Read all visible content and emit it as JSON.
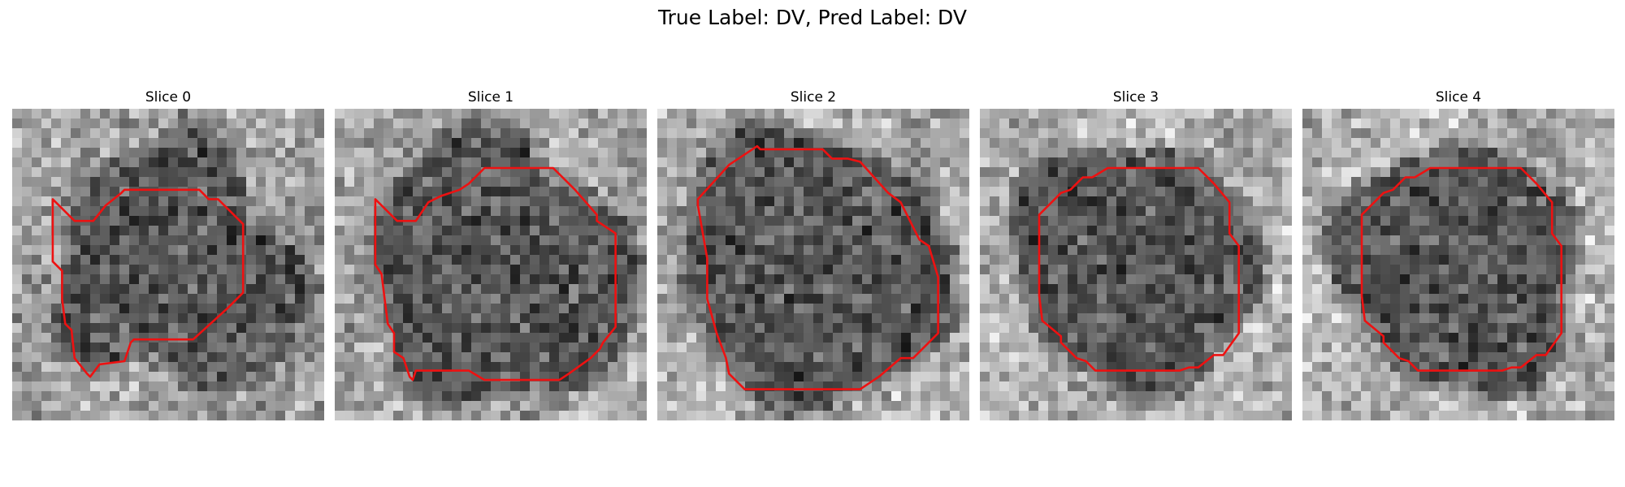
{
  "figure": {
    "title": "True Label: DV, Pred Label: DV"
  },
  "panels": [
    {
      "label": "Slice 0",
      "region": {
        "center": [
          0.53,
          0.51
        ],
        "radius": 0.36,
        "wobble": [
          0.05,
          0.04,
          0.03
        ]
      },
      "background_brightness": 0.62,
      "contour": [
        [
          0.13,
          0.29
        ],
        [
          0.2,
          0.36
        ],
        [
          0.26,
          0.36
        ],
        [
          0.3,
          0.31
        ],
        [
          0.35,
          0.27
        ],
        [
          0.36,
          0.26
        ],
        [
          0.6,
          0.26
        ],
        [
          0.63,
          0.29
        ],
        [
          0.66,
          0.29
        ],
        [
          0.7,
          0.33
        ],
        [
          0.74,
          0.37
        ],
        [
          0.74,
          0.59
        ],
        [
          0.69,
          0.64
        ],
        [
          0.58,
          0.74
        ],
        [
          0.39,
          0.74
        ],
        [
          0.38,
          0.75
        ],
        [
          0.36,
          0.81
        ],
        [
          0.28,
          0.82
        ],
        [
          0.25,
          0.86
        ],
        [
          0.24,
          0.85
        ],
        [
          0.2,
          0.8
        ],
        [
          0.19,
          0.71
        ],
        [
          0.17,
          0.69
        ],
        [
          0.16,
          0.61
        ],
        [
          0.16,
          0.52
        ],
        [
          0.13,
          0.49
        ],
        [
          0.13,
          0.31
        ]
      ]
    },
    {
      "label": "Slice 1",
      "region": {
        "center": [
          0.53,
          0.52
        ],
        "radius": 0.4,
        "wobble": [
          0.04,
          0.03,
          0.02
        ]
      },
      "background_brightness": 0.64,
      "contour": [
        [
          0.13,
          0.29
        ],
        [
          0.2,
          0.36
        ],
        [
          0.26,
          0.36
        ],
        [
          0.3,
          0.3
        ],
        [
          0.34,
          0.28
        ],
        [
          0.4,
          0.26
        ],
        [
          0.43,
          0.24
        ],
        [
          0.47,
          0.2
        ],
        [
          0.48,
          0.19
        ],
        [
          0.7,
          0.19
        ],
        [
          0.74,
          0.23
        ],
        [
          0.77,
          0.26
        ],
        [
          0.84,
          0.34
        ],
        [
          0.84,
          0.36
        ],
        [
          0.9,
          0.4
        ],
        [
          0.9,
          0.7
        ],
        [
          0.86,
          0.75
        ],
        [
          0.85,
          0.77
        ],
        [
          0.82,
          0.8
        ],
        [
          0.75,
          0.85
        ],
        [
          0.72,
          0.87
        ],
        [
          0.48,
          0.87
        ],
        [
          0.43,
          0.84
        ],
        [
          0.26,
          0.84
        ],
        [
          0.25,
          0.87
        ],
        [
          0.24,
          0.86
        ],
        [
          0.22,
          0.8
        ],
        [
          0.19,
          0.78
        ],
        [
          0.19,
          0.72
        ],
        [
          0.17,
          0.69
        ],
        [
          0.16,
          0.61
        ],
        [
          0.15,
          0.53
        ],
        [
          0.13,
          0.5
        ],
        [
          0.13,
          0.31
        ]
      ]
    },
    {
      "label": "Slice 2",
      "region": {
        "center": [
          0.5,
          0.51
        ],
        "radius": 0.41,
        "wobble": [
          0.03,
          0.02,
          0.02
        ]
      },
      "background_brightness": 0.66,
      "contour": [
        [
          0.13,
          0.29
        ],
        [
          0.23,
          0.18
        ],
        [
          0.26,
          0.16
        ],
        [
          0.32,
          0.12
        ],
        [
          0.33,
          0.13
        ],
        [
          0.53,
          0.13
        ],
        [
          0.56,
          0.16
        ],
        [
          0.61,
          0.16
        ],
        [
          0.65,
          0.17
        ],
        [
          0.74,
          0.27
        ],
        [
          0.78,
          0.3
        ],
        [
          0.84,
          0.42
        ],
        [
          0.87,
          0.44
        ],
        [
          0.9,
          0.54
        ],
        [
          0.9,
          0.72
        ],
        [
          0.82,
          0.8
        ],
        [
          0.78,
          0.8
        ],
        [
          0.71,
          0.86
        ],
        [
          0.65,
          0.9
        ],
        [
          0.28,
          0.9
        ],
        [
          0.23,
          0.85
        ],
        [
          0.22,
          0.8
        ],
        [
          0.19,
          0.72
        ],
        [
          0.16,
          0.61
        ],
        [
          0.16,
          0.48
        ],
        [
          0.13,
          0.31
        ]
      ]
    },
    {
      "label": "Slice 3",
      "region": {
        "center": [
          0.5,
          0.5
        ],
        "radius": 0.37,
        "wobble": [
          0.03,
          0.02,
          0.02
        ]
      },
      "background_brightness": 0.7,
      "contour": [
        [
          0.19,
          0.34
        ],
        [
          0.26,
          0.27
        ],
        [
          0.29,
          0.26
        ],
        [
          0.33,
          0.22
        ],
        [
          0.36,
          0.22
        ],
        [
          0.41,
          0.19
        ],
        [
          0.7,
          0.19
        ],
        [
          0.75,
          0.24
        ],
        [
          0.8,
          0.3
        ],
        [
          0.8,
          0.4
        ],
        [
          0.83,
          0.44
        ],
        [
          0.83,
          0.72
        ],
        [
          0.78,
          0.79
        ],
        [
          0.75,
          0.79
        ],
        [
          0.7,
          0.83
        ],
        [
          0.67,
          0.83
        ],
        [
          0.64,
          0.84
        ],
        [
          0.37,
          0.84
        ],
        [
          0.34,
          0.81
        ],
        [
          0.31,
          0.8
        ],
        [
          0.26,
          0.75
        ],
        [
          0.26,
          0.73
        ],
        [
          0.2,
          0.68
        ],
        [
          0.19,
          0.6
        ],
        [
          0.19,
          0.34
        ]
      ]
    },
    {
      "label": "Slice 4",
      "region": {
        "center": [
          0.5,
          0.51
        ],
        "radius": 0.37,
        "wobble": [
          0.03,
          0.02,
          0.02
        ]
      },
      "background_brightness": 0.7,
      "contour": [
        [
          0.19,
          0.34
        ],
        [
          0.26,
          0.27
        ],
        [
          0.29,
          0.26
        ],
        [
          0.33,
          0.22
        ],
        [
          0.36,
          0.22
        ],
        [
          0.41,
          0.19
        ],
        [
          0.7,
          0.19
        ],
        [
          0.75,
          0.24
        ],
        [
          0.8,
          0.3
        ],
        [
          0.8,
          0.4
        ],
        [
          0.83,
          0.44
        ],
        [
          0.83,
          0.72
        ],
        [
          0.78,
          0.79
        ],
        [
          0.75,
          0.79
        ],
        [
          0.7,
          0.83
        ],
        [
          0.67,
          0.83
        ],
        [
          0.64,
          0.84
        ],
        [
          0.37,
          0.84
        ],
        [
          0.34,
          0.81
        ],
        [
          0.31,
          0.8
        ],
        [
          0.26,
          0.75
        ],
        [
          0.26,
          0.73
        ],
        [
          0.2,
          0.68
        ],
        [
          0.19,
          0.6
        ],
        [
          0.19,
          0.34
        ]
      ]
    }
  ],
  "colors": {
    "contour": "#ee1111",
    "background": "#ffffff"
  }
}
